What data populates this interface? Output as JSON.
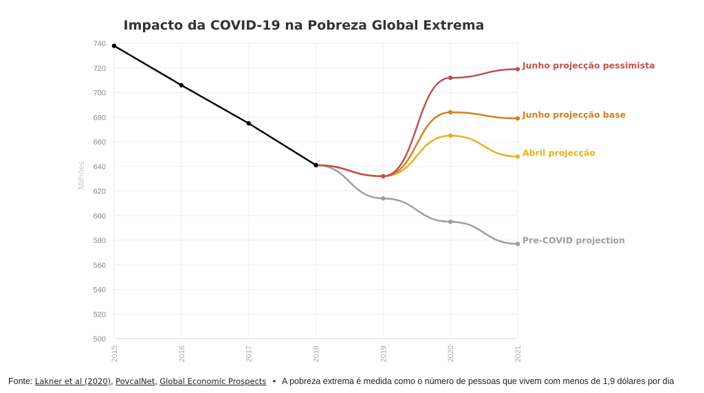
{
  "chart_data": {
    "type": "line",
    "title": "Impacto da COVID-19 na Pobreza Global Extrema",
    "ylabel": "Milhões",
    "xlabel": "",
    "x": [
      2015,
      2016,
      2017,
      2018,
      2019,
      2020,
      2021
    ],
    "ylim": [
      500,
      740
    ],
    "yticks": [
      500,
      520,
      540,
      560,
      580,
      600,
      620,
      640,
      660,
      680,
      700,
      720,
      740
    ],
    "grid": true,
    "series": [
      {
        "name": "Pre-COVID projection",
        "color": "#9e9e9e",
        "x": [
          2018,
          2019,
          2020,
          2021
        ],
        "values": [
          641,
          614,
          595,
          577
        ]
      },
      {
        "name": "Abril projecção",
        "color": "#e6b21c",
        "x": [
          2018,
          2019,
          2020,
          2021
        ],
        "values": [
          641,
          632,
          665,
          648
        ]
      },
      {
        "name": "Junho projecção base",
        "color": "#d4801e",
        "x": [
          2018,
          2019,
          2020,
          2021
        ],
        "values": [
          641,
          632,
          684,
          679
        ]
      },
      {
        "name": "Junho projecção pessimista",
        "color": "#c0504d",
        "x": [
          2018,
          2019,
          2020,
          2021
        ],
        "values": [
          641,
          632,
          712,
          719
        ]
      },
      {
        "name": "",
        "color": "#000000",
        "x": [
          2015,
          2016,
          2017,
          2018
        ],
        "values": [
          738,
          706,
          675,
          641
        ]
      }
    ]
  },
  "footer": {
    "prefix": "Fonte:",
    "sources": [
      "Lakner et al (2020)",
      "PovcalNet",
      "Global Economic Prospects"
    ],
    "separator": "•",
    "note": "A pobreza extrema é medida como o número de pessoas que vivem com  menos de 1,9 dólares por dia"
  }
}
